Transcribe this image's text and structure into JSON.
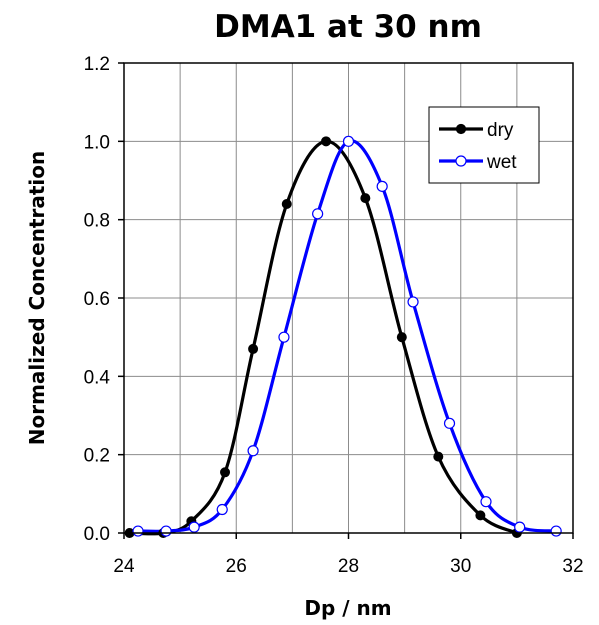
{
  "chart_data": {
    "type": "line",
    "title": "DMA1 at 30 nm",
    "xlabel": "Dp / nm",
    "ylabel": "Normalized Concentration",
    "xlim": [
      24,
      32
    ],
    "ylim": [
      0,
      1.2
    ],
    "x_ticks": [
      "24",
      "26",
      "28",
      "30",
      "32"
    ],
    "y_ticks": [
      "0.0",
      "0.2",
      "0.4",
      "0.6",
      "0.8",
      "1.0",
      "1.2"
    ],
    "grid": true,
    "legend_position": "top-right",
    "series": [
      {
        "name": "dry",
        "color": "#000000",
        "marker": "filled-circle",
        "points": [
          [
            24.1,
            0.0
          ],
          [
            24.7,
            0.0
          ],
          [
            25.2,
            0.03
          ],
          [
            25.8,
            0.155
          ],
          [
            26.3,
            0.47
          ],
          [
            26.9,
            0.84
          ],
          [
            27.6,
            1.0
          ],
          [
            28.3,
            0.855
          ],
          [
            28.95,
            0.5
          ],
          [
            29.6,
            0.195
          ],
          [
            30.35,
            0.045
          ],
          [
            31.0,
            0.0
          ]
        ]
      },
      {
        "name": "wet",
        "color": "#0000ff",
        "marker": "open-circle",
        "points": [
          [
            24.25,
            0.005
          ],
          [
            24.75,
            0.005
          ],
          [
            25.25,
            0.015
          ],
          [
            25.75,
            0.06
          ],
          [
            26.3,
            0.21
          ],
          [
            26.85,
            0.5
          ],
          [
            27.45,
            0.815
          ],
          [
            28.0,
            1.0
          ],
          [
            28.6,
            0.885
          ],
          [
            29.15,
            0.59
          ],
          [
            29.8,
            0.28
          ],
          [
            30.45,
            0.08
          ],
          [
            31.05,
            0.015
          ],
          [
            31.7,
            0.005
          ]
        ]
      }
    ]
  }
}
